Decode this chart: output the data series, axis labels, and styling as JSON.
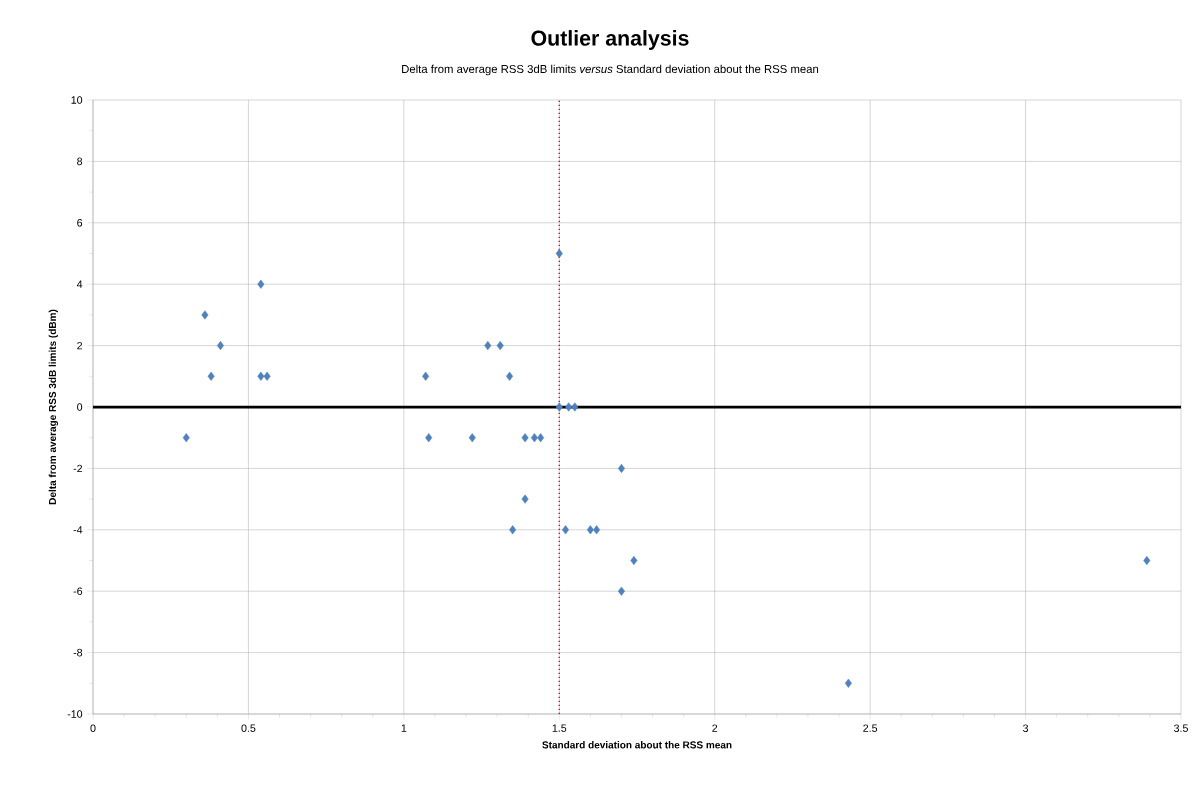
{
  "chart_data": {
    "type": "scatter",
    "title": "Outlier analysis",
    "subtitle": "Delta from average RSS 3dB limits *versus* Standard deviation about the RSS mean",
    "xlabel": "Standard deviation about the RSS mean",
    "ylabel": "Delta from average RSS 3dB limits (dBm)",
    "x": [
      0.3,
      0.36,
      0.38,
      0.41,
      0.54,
      0.54,
      0.56,
      1.07,
      1.08,
      1.22,
      1.27,
      1.31,
      1.34,
      1.35,
      1.39,
      1.39,
      1.42,
      1.44,
      1.5,
      1.5,
      1.52,
      1.53,
      1.55,
      1.6,
      1.62,
      1.7,
      1.7,
      1.74,
      2.43,
      3.39
    ],
    "values": [
      -1,
      3,
      1,
      2,
      4,
      1,
      1,
      1,
      -1,
      -1,
      2,
      2,
      1,
      -4,
      -3,
      -1,
      -1,
      -1,
      5,
      0,
      -4,
      0,
      0,
      -4,
      -4,
      -2,
      -6,
      -5,
      -9,
      -5
    ],
    "color": "#4f81bd",
    "marker": "diamond",
    "xlim": [
      0,
      3.5
    ],
    "xticks": [
      0,
      0.5,
      1,
      1.5,
      2,
      2.5,
      3,
      3.5
    ],
    "ylim": [
      -10,
      10
    ],
    "yticks": [
      -10,
      -8,
      -6,
      -4,
      -2,
      0,
      2,
      4,
      6,
      8,
      10
    ],
    "grid": true,
    "ref_lines": [
      {
        "axis": "y",
        "value": 0,
        "color": "#000000",
        "line_style": "solid"
      },
      {
        "axis": "x",
        "value": 1.5,
        "color": "#e00000",
        "line_style": "dotted"
      }
    ]
  }
}
